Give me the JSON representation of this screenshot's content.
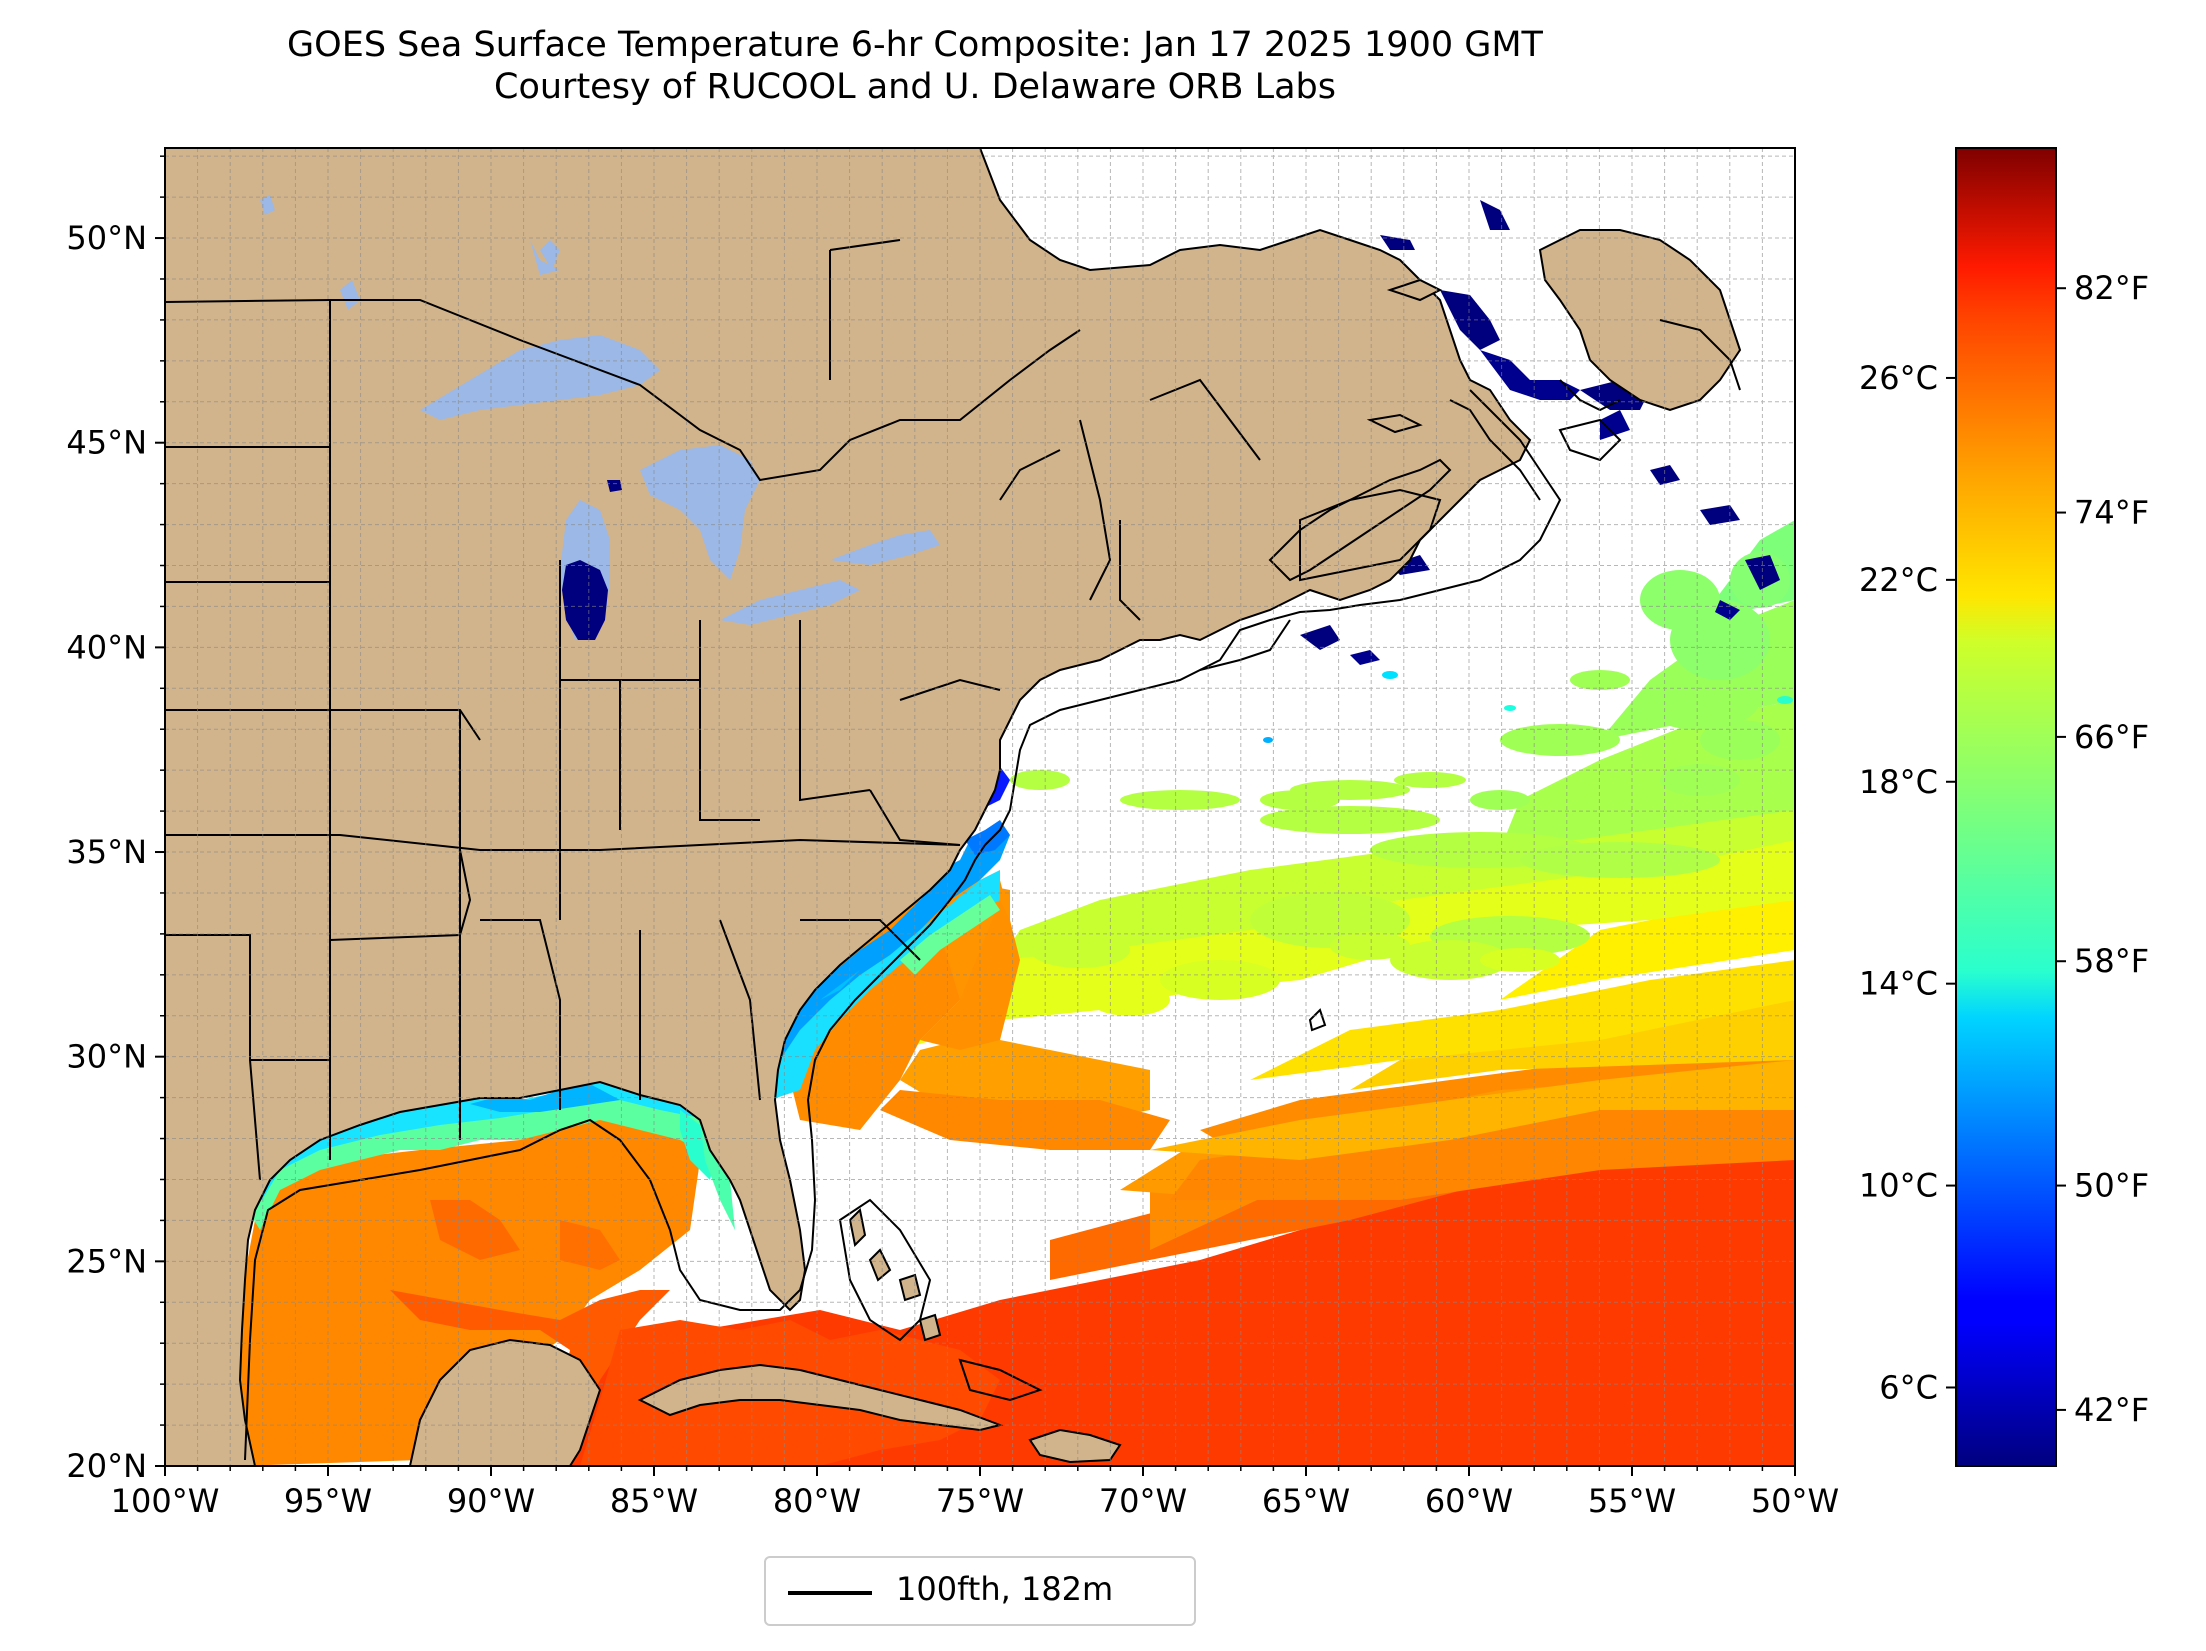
{
  "title": {
    "line1": "GOES Sea Surface Temperature 6-hr Composite: Jan 17 2025 1900 GMT",
    "line2": "Courtesy of RUCOOL and U. Delaware ORB Labs"
  },
  "map": {
    "lon_range": [
      -100,
      -50
    ],
    "lat_range": [
      20,
      52.2
    ],
    "gridlines": true,
    "land_color": "#d2b48c",
    "lake_color": "#9bb8e6",
    "lat_ticks": [
      "20°N",
      "25°N",
      "30°N",
      "35°N",
      "40°N",
      "45°N",
      "50°N"
    ],
    "lon_ticks": [
      "100°W",
      "95°W",
      "90°W",
      "85°W",
      "80°W",
      "75°W",
      "70°W",
      "65°W",
      "60°W",
      "55°W",
      "50°W"
    ]
  },
  "colorbar": {
    "colormap": "jet",
    "celsius_ticks": [
      "6°C",
      "10°C",
      "14°C",
      "18°C",
      "22°C",
      "26°C"
    ],
    "fahrenheit_ticks": [
      "42°F",
      "50°F",
      "58°F",
      "66°F",
      "74°F",
      "82°F"
    ],
    "celsius_values": [
      6,
      10,
      14,
      18,
      22,
      26
    ],
    "fahrenheit_values": [
      42,
      50,
      58,
      66,
      74,
      82
    ],
    "range_f": [
      40,
      87
    ]
  },
  "legend": {
    "label": "100fth, 182m",
    "line_color": "#000000"
  }
}
